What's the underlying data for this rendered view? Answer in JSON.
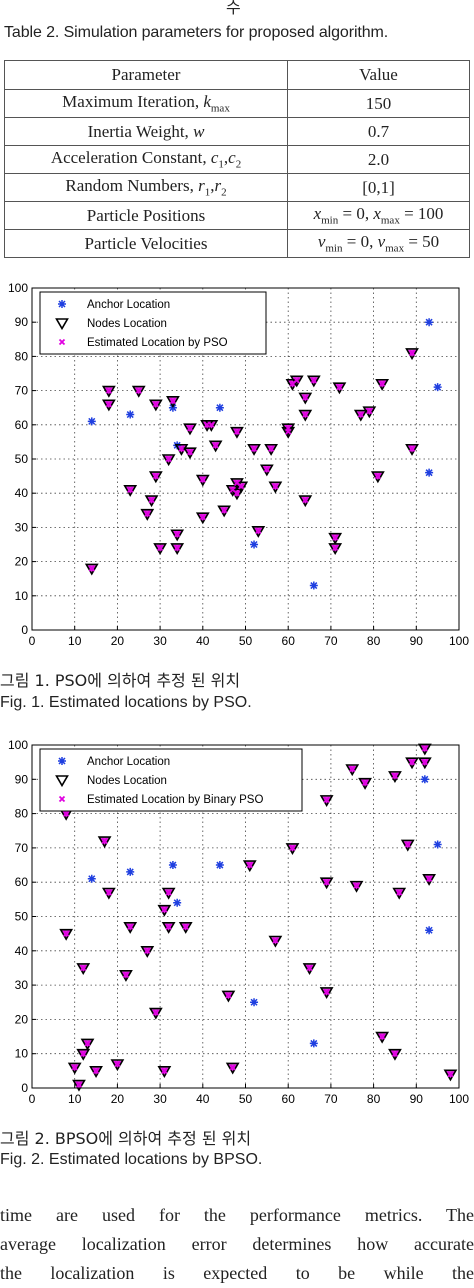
{
  "header_fragment": "수",
  "table": {
    "caption": "Table 2.   Simulation parameters for proposed algorithm.",
    "headers": [
      "Parameter",
      "Value"
    ],
    "rows": [
      [
        "Maximum Iteration, k_max",
        "150"
      ],
      [
        "Inertia Weight, w",
        "0.7"
      ],
      [
        "Acceleration Constant, c1,c2",
        "2.0"
      ],
      [
        "Random Numbers, r1,r2",
        "[0,1]"
      ],
      [
        "Particle Positions",
        "x_min = 0, x_max = 100"
      ],
      [
        "Particle Velocities",
        "v_min = 0, v_max = 50"
      ]
    ]
  },
  "figures": [
    {
      "caption_ko": "그림   1.  PSO에  의하여  추정  된  위치",
      "caption_en": "Fig.    1.  Estimated locations by PSO.",
      "chart_data": {
        "type": "scatter",
        "xlim": [
          0,
          100
        ],
        "ylim": [
          0,
          100
        ],
        "xticks": [
          0,
          10,
          20,
          30,
          40,
          50,
          60,
          70,
          80,
          90,
          100
        ],
        "yticks": [
          0,
          10,
          20,
          30,
          40,
          50,
          60,
          70,
          80,
          90,
          100
        ],
        "grid": true,
        "legend_position": "top-left",
        "series": [
          {
            "name": "Anchor Location",
            "marker": "star",
            "color": "#1f3fe0",
            "points": [
              [
                14,
                61
              ],
              [
                23,
                63
              ],
              [
                33,
                65
              ],
              [
                34,
                54
              ],
              [
                44,
                65
              ],
              [
                52,
                25
              ],
              [
                66,
                13
              ],
              [
                93,
                90
              ],
              [
                95,
                71
              ],
              [
                93,
                46
              ]
            ]
          },
          {
            "name": "Nodes Location",
            "marker": "triangle-down",
            "color": "#000000",
            "points": [
              [
                14,
                18
              ],
              [
                18,
                70
              ],
              [
                18,
                66
              ],
              [
                23,
                41
              ],
              [
                25,
                70
              ],
              [
                27,
                34
              ],
              [
                28,
                38
              ],
              [
                29,
                45
              ],
              [
                29,
                66
              ],
              [
                30,
                24
              ],
              [
                32,
                50
              ],
              [
                33,
                67
              ],
              [
                34,
                24
              ],
              [
                34,
                28
              ],
              [
                35,
                53
              ],
              [
                37,
                59
              ],
              [
                37,
                52
              ],
              [
                40,
                33
              ],
              [
                40,
                44
              ],
              [
                41,
                60
              ],
              [
                42,
                60
              ],
              [
                43,
                54
              ],
              [
                45,
                35
              ],
              [
                47,
                41
              ],
              [
                48,
                40
              ],
              [
                48,
                43
              ],
              [
                48,
                58
              ],
              [
                49,
                42
              ],
              [
                52,
                53
              ],
              [
                53,
                29
              ],
              [
                55,
                47
              ],
              [
                56,
                53
              ],
              [
                57,
                42
              ],
              [
                60,
                58
              ],
              [
                60,
                59
              ],
              [
                61,
                72
              ],
              [
                62,
                73
              ],
              [
                64,
                68
              ],
              [
                64,
                63
              ],
              [
                64,
                38
              ],
              [
                66,
                73
              ],
              [
                71,
                27
              ],
              [
                71,
                24
              ],
              [
                72,
                71
              ],
              [
                77,
                63
              ],
              [
                79,
                64
              ],
              [
                81,
                45
              ],
              [
                82,
                72
              ],
              [
                89,
                81
              ],
              [
                89,
                53
              ]
            ]
          },
          {
            "name": "Estimated Location by PSO",
            "marker": "x",
            "color": "#e000e0",
            "points": [
              [
                14,
                18
              ],
              [
                18,
                70
              ],
              [
                18,
                66
              ],
              [
                23,
                41
              ],
              [
                25,
                70
              ],
              [
                27,
                34
              ],
              [
                28,
                38
              ],
              [
                29,
                45
              ],
              [
                29,
                66
              ],
              [
                30,
                24
              ],
              [
                32,
                50
              ],
              [
                33,
                67
              ],
              [
                34,
                24
              ],
              [
                34,
                28
              ],
              [
                35,
                53
              ],
              [
                37,
                59
              ],
              [
                37,
                52
              ],
              [
                40,
                33
              ],
              [
                40,
                44
              ],
              [
                41,
                60
              ],
              [
                42,
                60
              ],
              [
                43,
                54
              ],
              [
                45,
                35
              ],
              [
                47,
                41
              ],
              [
                48,
                40
              ],
              [
                48,
                43
              ],
              [
                48,
                58
              ],
              [
                49,
                42
              ],
              [
                52,
                53
              ],
              [
                53,
                29
              ],
              [
                55,
                47
              ],
              [
                56,
                53
              ],
              [
                57,
                42
              ],
              [
                60,
                58
              ],
              [
                60,
                59
              ],
              [
                61,
                72
              ],
              [
                62,
                73
              ],
              [
                64,
                68
              ],
              [
                64,
                63
              ],
              [
                64,
                38
              ],
              [
                66,
                73
              ],
              [
                71,
                27
              ],
              [
                71,
                24
              ],
              [
                72,
                71
              ],
              [
                77,
                63
              ],
              [
                79,
                64
              ],
              [
                81,
                45
              ],
              [
                82,
                72
              ],
              [
                89,
                81
              ],
              [
                89,
                53
              ]
            ]
          }
        ]
      }
    },
    {
      "caption_ko": "그림   2.   BPSO에  의하여  추정  된  위치",
      "caption_en": "Fig.    2.   Estimated locations by BPSO.",
      "chart_data": {
        "type": "scatter",
        "xlim": [
          0,
          100
        ],
        "ylim": [
          0,
          100
        ],
        "xticks": [
          0,
          10,
          20,
          30,
          40,
          50,
          60,
          70,
          80,
          90,
          100
        ],
        "yticks": [
          0,
          10,
          20,
          30,
          40,
          50,
          60,
          70,
          80,
          90,
          100
        ],
        "grid": true,
        "legend_position": "top-left",
        "series": [
          {
            "name": "Anchor Location",
            "marker": "star",
            "color": "#1f3fe0",
            "points": [
              [
                14,
                61
              ],
              [
                23,
                63
              ],
              [
                33,
                65
              ],
              [
                34,
                54
              ],
              [
                44,
                65
              ],
              [
                52,
                25
              ],
              [
                66,
                13
              ],
              [
                92,
                90
              ],
              [
                95,
                71
              ],
              [
                93,
                46
              ]
            ]
          },
          {
            "name": "Nodes Location",
            "marker": "triangle-down",
            "color": "#000000",
            "points": [
              [
                8,
                80
              ],
              [
                8,
                45
              ],
              [
                10,
                6
              ],
              [
                11,
                1
              ],
              [
                12,
                10
              ],
              [
                12,
                35
              ],
              [
                13,
                13
              ],
              [
                15,
                5
              ],
              [
                17,
                72
              ],
              [
                18,
                57
              ],
              [
                20,
                7
              ],
              [
                22,
                33
              ],
              [
                23,
                47
              ],
              [
                27,
                40
              ],
              [
                29,
                22
              ],
              [
                31,
                5
              ],
              [
                31,
                52
              ],
              [
                32,
                47
              ],
              [
                32,
                57
              ],
              [
                36,
                47
              ],
              [
                46,
                27
              ],
              [
                47,
                6
              ],
              [
                51,
                65
              ],
              [
                57,
                43
              ],
              [
                61,
                70
              ],
              [
                65,
                35
              ],
              [
                69,
                28
              ],
              [
                69,
                84
              ],
              [
                69,
                60
              ],
              [
                75,
                93
              ],
              [
                76,
                59
              ],
              [
                78,
                89
              ],
              [
                82,
                15
              ],
              [
                85,
                10
              ],
              [
                85,
                91
              ],
              [
                86,
                57
              ],
              [
                88,
                71
              ],
              [
                89,
                95
              ],
              [
                92,
                95
              ],
              [
                92,
                99
              ],
              [
                93,
                61
              ],
              [
                98,
                4
              ]
            ]
          },
          {
            "name": "Estimated Location by Binary PSO",
            "marker": "x",
            "color": "#e000e0",
            "points": [
              [
                8,
                80
              ],
              [
                8,
                45
              ],
              [
                10,
                6
              ],
              [
                11,
                1
              ],
              [
                12,
                10
              ],
              [
                12,
                35
              ],
              [
                13,
                13
              ],
              [
                15,
                5
              ],
              [
                17,
                72
              ],
              [
                18,
                57
              ],
              [
                20,
                7
              ],
              [
                22,
                33
              ],
              [
                23,
                47
              ],
              [
                27,
                40
              ],
              [
                29,
                22
              ],
              [
                31,
                5
              ],
              [
                31,
                52
              ],
              [
                32,
                47
              ],
              [
                32,
                57
              ],
              [
                36,
                47
              ],
              [
                46,
                27
              ],
              [
                47,
                6
              ],
              [
                51,
                65
              ],
              [
                57,
                43
              ],
              [
                61,
                70
              ],
              [
                65,
                35
              ],
              [
                69,
                28
              ],
              [
                69,
                84
              ],
              [
                69,
                60
              ],
              [
                75,
                93
              ],
              [
                76,
                59
              ],
              [
                78,
                89
              ],
              [
                82,
                15
              ],
              [
                85,
                10
              ],
              [
                85,
                91
              ],
              [
                86,
                57
              ],
              [
                88,
                71
              ],
              [
                89,
                95
              ],
              [
                92,
                95
              ],
              [
                92,
                99
              ],
              [
                93,
                61
              ],
              [
                98,
                4
              ]
            ]
          }
        ]
      }
    }
  ],
  "body_lines": [
    "time  are  used  for  the  performance  metrics.  The",
    "average  localization  error  determines  how  accurate",
    "the  localization  is  expected  to  be  while  the"
  ]
}
